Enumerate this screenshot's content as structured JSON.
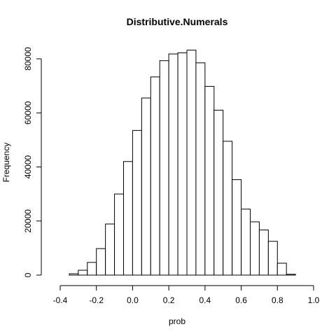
{
  "chart_data": {
    "type": "bar",
    "title": "Distributive.Numerals",
    "xlabel": "prob",
    "ylabel": "Frequency",
    "xlim": [
      -0.4,
      1.0
    ],
    "ylim": [
      0,
      80000
    ],
    "bin_width": 0.05,
    "bin_starts": [
      -0.35,
      -0.3,
      -0.25,
      -0.2,
      -0.15,
      -0.1,
      -0.05,
      0.0,
      0.05,
      0.1,
      0.15,
      0.2,
      0.25,
      0.3,
      0.35,
      0.4,
      0.45,
      0.5,
      0.55,
      0.6,
      0.65,
      0.7,
      0.75,
      0.8,
      0.85
    ],
    "values": [
      500,
      1800,
      4700,
      9800,
      18900,
      30000,
      42000,
      53500,
      65500,
      73300,
      79300,
      81800,
      82200,
      83200,
      78500,
      69800,
      61000,
      49500,
      35300,
      24400,
      19700,
      16700,
      12500,
      4400,
      300
    ],
    "x_ticks": [
      -0.4,
      -0.2,
      0.0,
      0.2,
      0.4,
      0.6,
      0.8,
      1.0
    ],
    "x_tick_labels": [
      "-0.4",
      "-0.2",
      "0.0",
      "0.2",
      "0.4",
      "0.6",
      "0.8",
      "1.0"
    ],
    "y_ticks": [
      0,
      20000,
      40000,
      60000,
      80000
    ],
    "y_tick_labels": [
      "0",
      "20000",
      "40000",
      "60000",
      "80000"
    ],
    "grid": false,
    "bar_fill": "#ffffff",
    "bar_stroke": "#000000"
  }
}
